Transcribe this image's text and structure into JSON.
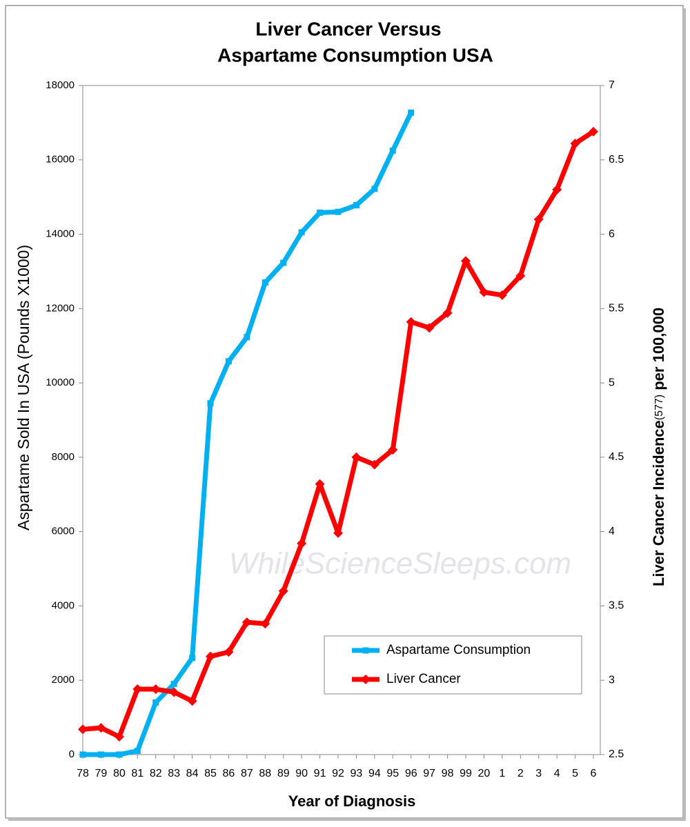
{
  "chart_data": {
    "type": "line",
    "title": [
      "Liver Cancer Versus",
      "Aspartame Consumption USA"
    ],
    "x_label": "Year of Diagnosis",
    "y_label": "Aspartame Sold In USA  (Pounds X1000)",
    "y2_label": [
      "Liver Cancer Incidence",
      "(577)",
      " per 100,000"
    ],
    "watermark": "WhileScienceSleeps.com",
    "categories": [
      "78",
      "79",
      "80",
      "81",
      "82",
      "83",
      "84",
      "85",
      "86",
      "87",
      "88",
      "89",
      "90",
      "91",
      "92",
      "93",
      "94",
      "95",
      "96",
      "97",
      "98",
      "99",
      "20",
      "1",
      "2",
      "3",
      "4",
      "5",
      "6"
    ],
    "series": [
      {
        "name": "Aspartame Consumption",
        "color": "#00b0f0",
        "marker": "square",
        "axis": "y",
        "values": [
          0,
          0,
          0,
          100,
          1400,
          1900,
          2600,
          9450,
          10580,
          11230,
          12700,
          13230,
          14050,
          14580,
          14600,
          14780,
          15220,
          16250,
          17270,
          null,
          null,
          null,
          null,
          null,
          null,
          null,
          null,
          null,
          null
        ]
      },
      {
        "name": "Liver Cancer",
        "color": "#ff0000",
        "marker": "diamond",
        "axis": "y2",
        "values": [
          2.67,
          2.68,
          2.62,
          2.94,
          2.94,
          2.92,
          2.86,
          3.16,
          3.19,
          3.39,
          3.38,
          3.6,
          3.92,
          4.32,
          3.99,
          4.5,
          4.45,
          4.55,
          5.41,
          5.37,
          5.47,
          5.82,
          5.61,
          5.59,
          5.72,
          6.1,
          6.3,
          6.61,
          6.69
        ]
      }
    ],
    "ylim": [
      0,
      18000
    ],
    "yticks": [
      0,
      2000,
      4000,
      6000,
      8000,
      10000,
      12000,
      14000,
      16000,
      18000
    ],
    "y2lim": [
      2.5,
      7
    ],
    "y2ticks": [
      2.5,
      3,
      3.5,
      4,
      4.5,
      5,
      5.5,
      6,
      6.5,
      7
    ],
    "grid": false,
    "legend": "lower right"
  }
}
